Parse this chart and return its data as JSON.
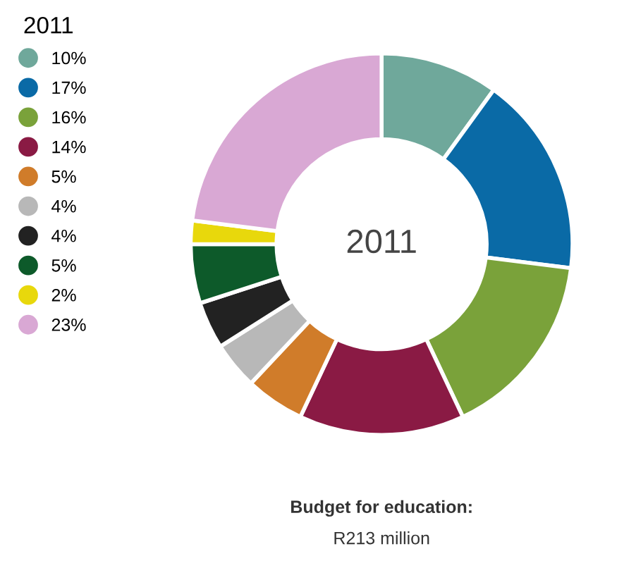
{
  "chart_data": {
    "type": "donut",
    "legend_title": "2011",
    "categories": [
      "10%",
      "17%",
      "16%",
      "14%",
      "5%",
      "4%",
      "4%",
      "5%",
      "2%",
      "23%"
    ],
    "values": [
      10,
      17,
      16,
      14,
      5,
      4,
      4,
      5,
      2,
      23
    ],
    "colors": [
      "#6fa89b",
      "#0a6aa6",
      "#7aa23a",
      "#8a1a44",
      "#d07c2a",
      "#b8b8b8",
      "#222222",
      "#0d5a2a",
      "#e8d80c",
      "#d9a8d4"
    ],
    "legend": "left",
    "annotations": [
      "2011",
      "Budget for education:",
      "R213 million"
    ]
  }
}
